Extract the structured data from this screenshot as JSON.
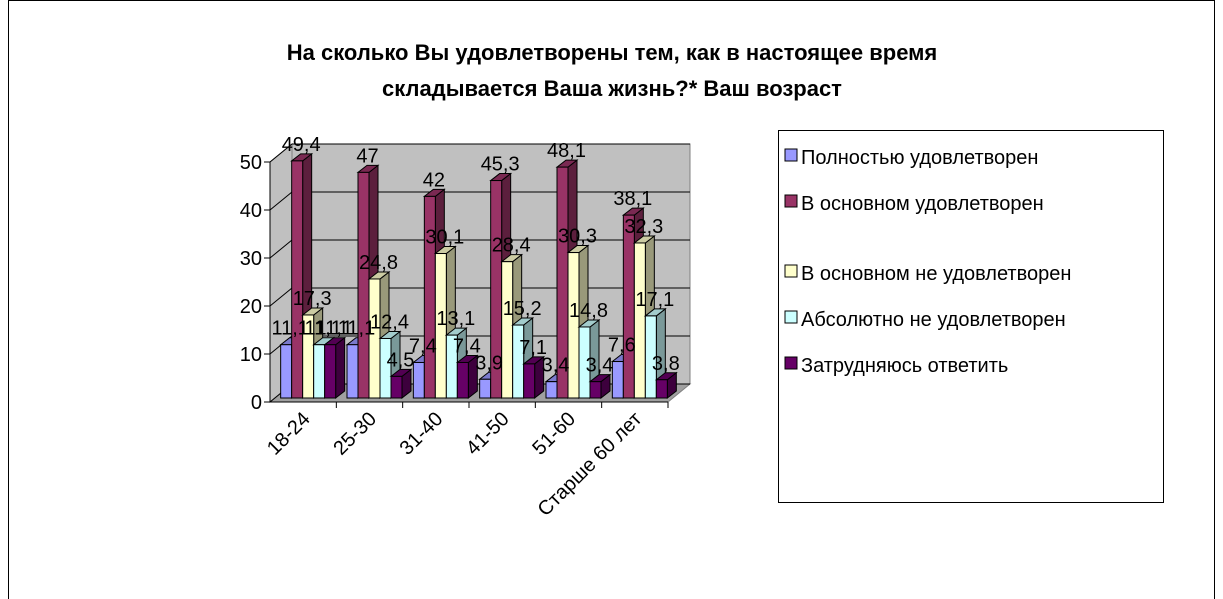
{
  "chart_data": {
    "type": "bar3d",
    "title": [
      "На сколько Вы удовлетворены тем, как в настоящее время",
      "складывается Ваша жизнь?* Ваш возраст"
    ],
    "categories": [
      "18-24",
      "25-30",
      "31-40",
      "41-50",
      "51-60",
      "Старше 60 лет"
    ],
    "ylim": [
      0,
      50
    ],
    "yticks": [
      0,
      10,
      20,
      30,
      40,
      50
    ],
    "grid": true,
    "legend": "right",
    "series": [
      {
        "name": "Полностью удовлетворен",
        "color": "#9999ff",
        "values": [
          11.1,
          11.1,
          7.4,
          3.9,
          3.4,
          7.6
        ],
        "value_labels": [
          "11,1",
          "11,1",
          "7,4",
          "3,9",
          "3,4",
          "7,6"
        ]
      },
      {
        "name": "В основном удовлетворен",
        "color": "#993366",
        "values": [
          49.4,
          47,
          42,
          45.3,
          48.1,
          38.1
        ],
        "value_labels": [
          "49,4",
          "47",
          "42",
          "45,3",
          "48,1",
          "38,1"
        ]
      },
      {
        "name": "В основном не удовлетворен",
        "color": "#ffffcc",
        "values": [
          17.3,
          24.8,
          30.1,
          28.4,
          30.3,
          32.3
        ],
        "value_labels": [
          "17,3",
          "24,8",
          "30,1",
          "28,4",
          "30,3",
          "32,3"
        ]
      },
      {
        "name": "Абсолютно не удовлетворен",
        "color": "#ccffff",
        "values": [
          11.1,
          12.4,
          13.1,
          15.2,
          14.8,
          17.1
        ],
        "value_labels": [
          "11,1",
          "12,4",
          "13,1",
          "15,2",
          "14,8",
          "17,1"
        ]
      },
      {
        "name": "Затрудняюсь ответить",
        "color": "#660066",
        "values": [
          11.1,
          4.5,
          7.4,
          7.1,
          3.4,
          3.8
        ],
        "value_labels": [
          "11,1",
          "4,5",
          "7,4",
          "7,1",
          "3,4",
          "3,8"
        ]
      }
    ]
  }
}
